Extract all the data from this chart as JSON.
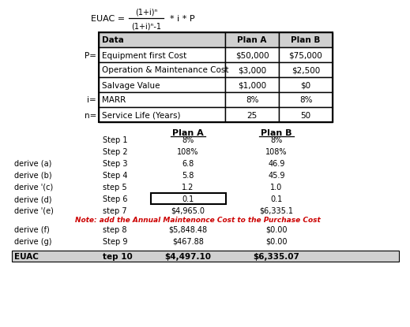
{
  "formula_left": "EUAC =",
  "formula_numerator": "(1+i)ⁿ",
  "formula_denominator": "(1+i)ⁿ-1",
  "formula_suffix": "* i * P",
  "table1_headers": [
    "Data",
    "Plan A",
    "Plan B"
  ],
  "table1_rows": [
    [
      "P=",
      "Equipment first Cost",
      "$50,000",
      "$75,000"
    ],
    [
      "",
      "Operation & Maintenance Cost",
      "$3,000",
      "$2,500"
    ],
    [
      "",
      "Salvage Value",
      "$1,000",
      "$0"
    ],
    [
      "i=",
      "MARR",
      "8%",
      "8%"
    ],
    [
      "n=",
      "Service Life (Years)",
      "25",
      "50"
    ]
  ],
  "calc_header_planA": "Plan A",
  "calc_header_planB": "Plan B",
  "calc_rows": [
    [
      "",
      "Step 1",
      "8%",
      "8%"
    ],
    [
      "",
      "Step 2",
      "108%",
      "108%"
    ],
    [
      "derive (a)",
      "Step 3",
      "6.8",
      "46.9"
    ],
    [
      "derive (b)",
      "Step 4",
      "5.8",
      "45.9"
    ],
    [
      "derive '(c)",
      "step 5",
      "1.2",
      "1.0"
    ],
    [
      "derive (d)",
      "Step 6",
      "0.1",
      "0.1"
    ],
    [
      "derive '(e)",
      "step 7",
      "$4,965.0",
      "$6,335.1"
    ]
  ],
  "note_text": "Note: add the Annual Maintenonce Cost to the Purchase Cost",
  "calc_rows2": [
    [
      "derive (f)",
      "step 8",
      "$5,848.48",
      "$0.00"
    ],
    [
      "derive (g)",
      "Step 9",
      "$467.88",
      "$0.00"
    ]
  ],
  "euac_row": [
    "EUAC",
    "tep 10",
    "$4,497.10",
    "$6,335.07"
  ],
  "bg_color": "#ffffff",
  "table_header_bg": "#d0d0d0",
  "euac_row_bg": "#d0d0d0",
  "note_color": "#cc0000",
  "border_color": "#000000",
  "text_color": "#000000"
}
